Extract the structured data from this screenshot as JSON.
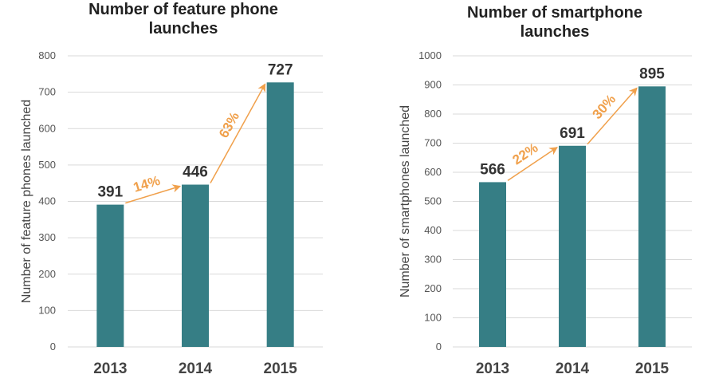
{
  "chart_data": [
    {
      "type": "bar",
      "title_lines": [
        "Number of feature phone",
        "launches"
      ],
      "ylabel": "Number of feature phones launched",
      "categories": [
        "2013",
        "2014",
        "2015"
      ],
      "values": [
        391,
        446,
        727
      ],
      "value_labels": [
        "391",
        "446",
        "727"
      ],
      "ylim": [
        0,
        800
      ],
      "yticks": [
        "0",
        "100",
        "200",
        "300",
        "400",
        "500",
        "600",
        "700",
        "800"
      ],
      "growth_labels": [
        "14%",
        "63%"
      ],
      "bar_color": "#367E85",
      "arrow_color": "#F0A04B",
      "grid": true
    },
    {
      "type": "bar",
      "title_lines": [
        "Number of smartphone",
        "launches"
      ],
      "ylabel": "Number of smartphones launched",
      "categories": [
        "2013",
        "2014",
        "2015"
      ],
      "values": [
        566,
        691,
        895
      ],
      "value_labels": [
        "566",
        "691",
        "895"
      ],
      "ylim": [
        0,
        1000
      ],
      "yticks": [
        "0",
        "100",
        "200",
        "300",
        "400",
        "500",
        "600",
        "700",
        "800",
        "900",
        "1000"
      ],
      "growth_labels": [
        "22%",
        "30%"
      ],
      "bar_color": "#367E85",
      "arrow_color": "#F0A04B",
      "grid": true
    }
  ]
}
